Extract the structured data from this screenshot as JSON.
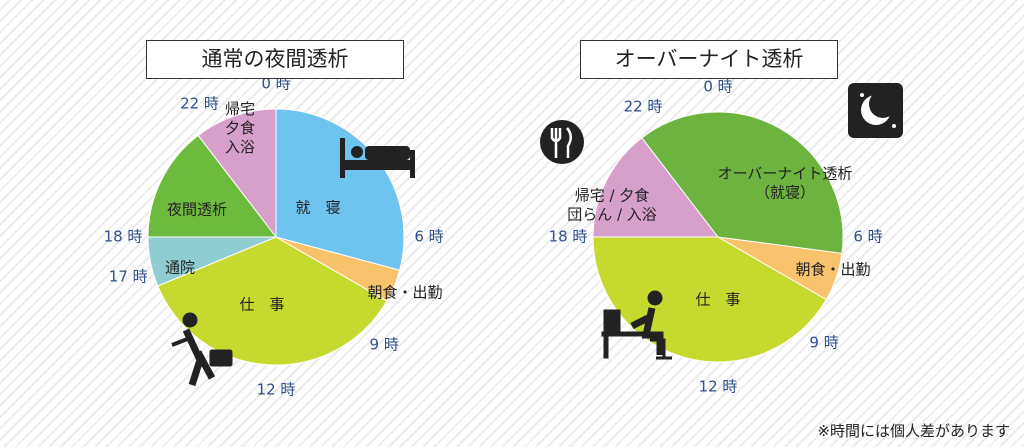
{
  "chart_data": [
    {
      "type": "pie",
      "title": "通常の夜間透析",
      "categories": [
        "就　寝",
        "朝食・出勤",
        "仕　事",
        "通院",
        "夜間透析",
        "帰宅\n夕食\n入浴"
      ],
      "values": [
        7,
        1,
        8.5,
        1.5,
        3.5,
        2.5
      ],
      "colors": [
        "#6ec3ef",
        "#f8c36c",
        "#c6d92e",
        "#8fcdd0",
        "#6dbb3d",
        "#d6a0cb"
      ],
      "start": 0,
      "xlim": [
        0,
        24
      ],
      "xticks": [
        {
          "value": 0,
          "label": "0 時"
        },
        {
          "value": 6,
          "label": "6 時"
        },
        {
          "value": 9,
          "label": "9 時"
        },
        {
          "value": 12,
          "label": "12 時"
        },
        {
          "value": 17,
          "label": "17 時"
        },
        {
          "value": 18,
          "label": "18 時"
        },
        {
          "value": 22,
          "label": "22 時"
        }
      ]
    },
    {
      "type": "pie",
      "title": "オーバーナイト透析",
      "categories": [
        "オーバーナイト透析\n（就寝）",
        "朝食・出勤",
        "仕　事",
        "帰宅 / 夕食\n団らん / 入浴"
      ],
      "values": [
        9,
        1.5,
        10,
        3.5
      ],
      "colors": [
        "#6cb43f",
        "#f8c36c",
        "#c6d92e",
        "#d6a0cb"
      ],
      "start": 21.5,
      "xlim": [
        0,
        24
      ],
      "xticks": [
        {
          "value": 0,
          "label": "0 時"
        },
        {
          "value": 6,
          "label": "6 時"
        },
        {
          "value": 9,
          "label": "9 時"
        },
        {
          "value": 12,
          "label": "12 時"
        },
        {
          "value": 18,
          "label": "18 時"
        },
        {
          "value": 22,
          "label": "22 時"
        }
      ]
    }
  ],
  "footnote": "※時間には個人差があります"
}
